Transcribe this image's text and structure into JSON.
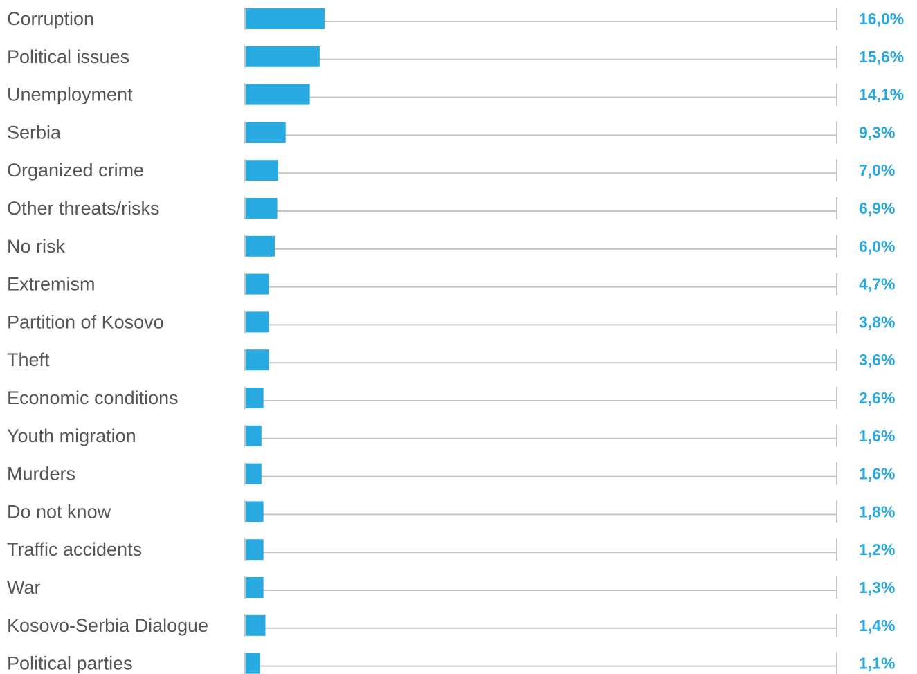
{
  "chart_data": {
    "type": "bar",
    "orientation": "horizontal",
    "categories": [
      "Corruption",
      "Political issues",
      "Unemployment",
      "Serbia",
      "Organized crime",
      "Other threats/risks",
      "No risk",
      "Extremism",
      "Partition of Kosovo",
      "Theft",
      "Economic conditions",
      "Youth migration",
      "Murders",
      "Do not know",
      "Traffic accidents",
      "War",
      "Kosovo-Serbia Dialogue",
      "Political parties"
    ],
    "values": [
      16.0,
      15.6,
      14.1,
      9.3,
      7.0,
      6.9,
      6.0,
      4.7,
      3.8,
      3.6,
      2.6,
      1.6,
      1.6,
      1.8,
      1.2,
      1.3,
      1.4,
      1.1
    ],
    "value_labels": [
      "16,0%",
      "15,6%",
      "14,1%",
      "9,3%",
      "7,0%",
      "6,9%",
      "6,0%",
      "4,7%",
      "3,8%",
      "3,6%",
      "2,6%",
      "1,6%",
      "1,6%",
      "1,8%",
      "1,2%",
      "1,3%",
      "1,4%",
      "1,1%"
    ],
    "bar_lengths_approx": [
      16.0,
      15.0,
      13.0,
      8.1,
      6.6,
      6.4,
      5.9,
      4.7,
      4.7,
      4.7,
      3.6,
      3.2,
      3.2,
      3.6,
      3.6,
      3.6,
      4.0,
      2.9
    ],
    "xlim": [
      0,
      120
    ],
    "colors": {
      "bar": "#29abe2",
      "value_text": "#29a9e1",
      "label_text": "#555555",
      "track": "#c4c4c4"
    }
  }
}
